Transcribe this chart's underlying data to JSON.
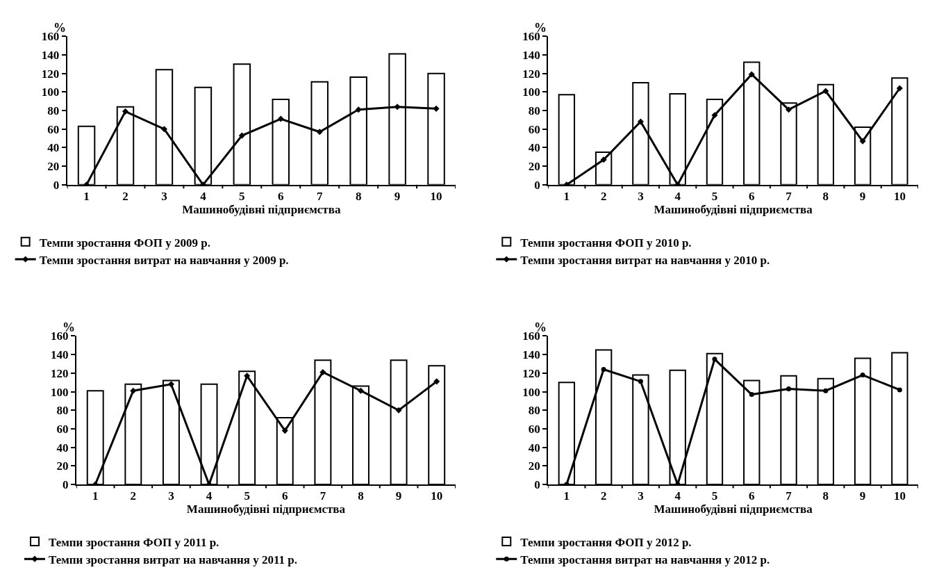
{
  "chart_data": [
    {
      "type": "bar",
      "xlabel": "Машинобудівні підприємства",
      "ylabel": "%",
      "categories": [
        "1",
        "2",
        "3",
        "4",
        "5",
        "6",
        "7",
        "8",
        "9",
        "10"
      ],
      "ylim": [
        0,
        160
      ],
      "yticks": [
        0,
        20,
        40,
        60,
        80,
        100,
        120,
        140,
        160
      ],
      "legend": "bottom",
      "series": [
        {
          "name": "Темпи зростання ФОП у 2009 р.",
          "color": "#ffffff",
          "values": [
            63,
            84,
            124,
            105,
            130,
            92,
            111,
            116,
            141,
            120
          ]
        },
        {
          "name": "Темпи зростання витрат на навчання у 2009 р.",
          "type": "line",
          "color": "#000000",
          "marker": "diamond",
          "values": [
            0,
            79,
            60,
            0,
            53,
            71,
            57,
            81,
            84,
            82
          ]
        }
      ]
    },
    {
      "type": "bar",
      "xlabel": "Машинобудівні підприємства",
      "ylabel": "%",
      "categories": [
        "1",
        "2",
        "3",
        "4",
        "5",
        "6",
        "7",
        "8",
        "9",
        "10"
      ],
      "ylim": [
        0,
        160
      ],
      "yticks": [
        0,
        20,
        40,
        60,
        80,
        100,
        120,
        140,
        160
      ],
      "legend": "bottom",
      "series": [
        {
          "name": "Темпи зростання ФОП у 2010 р.",
          "color": "#ffffff",
          "values": [
            97,
            35,
            110,
            98,
            92,
            132,
            88,
            108,
            62,
            115
          ]
        },
        {
          "name": "Темпи зростання витрат на навчання у 2010 р.",
          "type": "line",
          "color": "#000000",
          "marker": "diamond",
          "values": [
            0,
            27,
            68,
            0,
            75,
            119,
            81,
            101,
            47,
            104
          ]
        }
      ]
    },
    {
      "type": "bar",
      "xlabel": "Машинобудівні підприємства",
      "ylabel": "%",
      "categories": [
        "1",
        "2",
        "3",
        "4",
        "5",
        "6",
        "7",
        "8",
        "9",
        "10"
      ],
      "ylim": [
        0,
        160
      ],
      "yticks": [
        0,
        20,
        40,
        60,
        80,
        100,
        120,
        140,
        160
      ],
      "legend": "bottom",
      "series": [
        {
          "name": "Темпи зростання ФОП у 2011 р.",
          "color": "#ffffff",
          "values": [
            101,
            108,
            112,
            108,
            122,
            72,
            134,
            106,
            134,
            128
          ]
        },
        {
          "name": "Темпи зростання витрат на навчання у 2011 р.",
          "type": "line",
          "color": "#000000",
          "marker": "diamond",
          "values": [
            0,
            101,
            108,
            0,
            117,
            58,
            121,
            101,
            80,
            111
          ]
        }
      ]
    },
    {
      "type": "bar",
      "xlabel": "Машинобудівні підприємства",
      "ylabel": "%",
      "categories": [
        "1",
        "2",
        "3",
        "4",
        "5",
        "6",
        "7",
        "8",
        "9",
        "10"
      ],
      "ylim": [
        0,
        160
      ],
      "yticks": [
        0,
        20,
        40,
        60,
        80,
        100,
        120,
        140,
        160
      ],
      "legend": "bottom",
      "series": [
        {
          "name": "Темпи зростання ФОП у 2012 р.",
          "color": "#ffffff",
          "values": [
            110,
            145,
            118,
            123,
            141,
            112,
            117,
            114,
            136,
            142
          ]
        },
        {
          "name": "Темпи зростання витрат на навчання у 2012 р.",
          "type": "line",
          "color": "#000000",
          "marker": "circle",
          "values": [
            0,
            124,
            111,
            0,
            135,
            97,
            103,
            101,
            118,
            102
          ]
        }
      ]
    }
  ]
}
